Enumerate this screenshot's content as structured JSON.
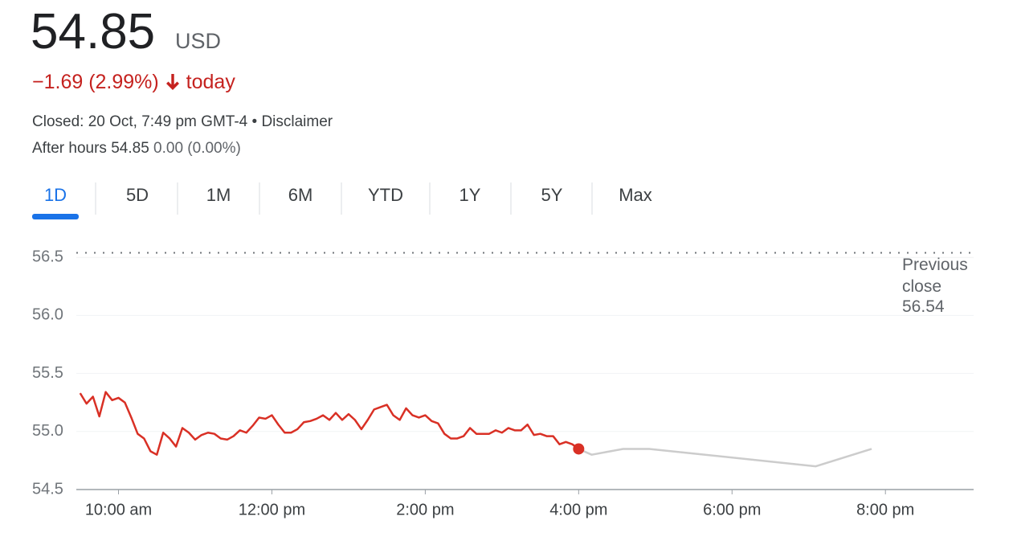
{
  "quote": {
    "price": "54.85",
    "currency": "USD",
    "change": "−1.69 (2.99%)",
    "period": "today",
    "status": "Closed: 20 Oct, 7:49 pm GMT-4",
    "separator": "•",
    "disclaimer": "Disclaimer",
    "after_hours_label": "After hours",
    "after_hours_price": "54.85",
    "after_hours_change": "0.00 (0.00%)"
  },
  "tabs": [
    "1D",
    "5D",
    "1M",
    "6M",
    "YTD",
    "1Y",
    "5Y",
    "Max"
  ],
  "selected_tab": 0,
  "chart_data": {
    "type": "line",
    "previous_close_label": "Previous close",
    "previous_close": 56.54,
    "xlim": [
      9.45,
      21.15
    ],
    "ylim": [
      54.5,
      56.55
    ],
    "xticks": [
      {
        "value": 10,
        "label": "10:00 am"
      },
      {
        "value": 12,
        "label": "12:00 pm"
      },
      {
        "value": 14,
        "label": "2:00 pm"
      },
      {
        "value": 16,
        "label": "4:00 pm"
      },
      {
        "value": 18,
        "label": "6:00 pm"
      },
      {
        "value": 20,
        "label": "8:00 pm"
      }
    ],
    "yticks": [
      54.5,
      {
        "value": 55,
        "label": "55.0"
      },
      55.5,
      {
        "value": 56,
        "label": "56.0"
      },
      56.5
    ],
    "grid": true,
    "series": [
      {
        "color": "#d93025",
        "x": [
          9.5,
          9.583,
          9.667,
          9.75,
          9.833,
          9.917,
          10,
          10.083,
          10.167,
          10.25,
          10.333,
          10.417,
          10.5,
          10.583,
          10.667,
          10.75,
          10.833,
          10.917,
          11,
          11.083,
          11.167,
          11.25,
          11.333,
          11.417,
          11.5,
          11.583,
          11.667,
          11.75,
          11.833,
          11.917,
          12,
          12.083,
          12.167,
          12.25,
          12.333,
          12.417,
          12.5,
          12.583,
          12.667,
          12.75,
          12.833,
          12.917,
          13,
          13.083,
          13.167,
          13.25,
          13.333,
          13.417,
          13.5,
          13.583,
          13.667,
          13.75,
          13.833,
          13.917,
          14,
          14.083,
          14.167,
          14.25,
          14.333,
          14.417,
          14.5,
          14.583,
          14.667,
          14.75,
          14.833,
          14.917,
          15,
          15.083,
          15.167,
          15.25,
          15.333,
          15.417,
          15.5,
          15.583,
          15.667,
          15.75,
          15.833,
          15.917,
          16
        ],
        "values": [
          55.33,
          55.24,
          55.3,
          55.13,
          55.34,
          55.27,
          55.29,
          55.25,
          55.12,
          54.98,
          54.94,
          54.83,
          54.8,
          54.99,
          54.94,
          54.87,
          55.03,
          54.99,
          54.93,
          54.97,
          54.99,
          54.98,
          54.94,
          54.93,
          54.96,
          55.01,
          54.99,
          55.05,
          55.12,
          55.11,
          55.14,
          55.06,
          54.99,
          54.99,
          55.02,
          55.08,
          55.09,
          55.11,
          55.14,
          55.1,
          55.16,
          55.1,
          55.15,
          55.1,
          55.02,
          55.1,
          55.19,
          55.21,
          55.23,
          55.14,
          55.1,
          55.2,
          55.14,
          55.12,
          55.14,
          55.09,
          55.07,
          54.98,
          54.94,
          54.94,
          54.96,
          55.03,
          54.98,
          54.98,
          54.98,
          55.01,
          54.99,
          55.03,
          55.01,
          55.01,
          55.06,
          54.97,
          54.98,
          54.96,
          54.96,
          54.89,
          54.91,
          54.89,
          54.85
        ]
      },
      {
        "color": "#cccccc",
        "x": [
          16,
          16.17,
          16.58,
          16.92,
          19.09,
          19.82
        ],
        "values": [
          54.85,
          54.8,
          54.85,
          54.85,
          54.7,
          54.85
        ]
      }
    ]
  }
}
